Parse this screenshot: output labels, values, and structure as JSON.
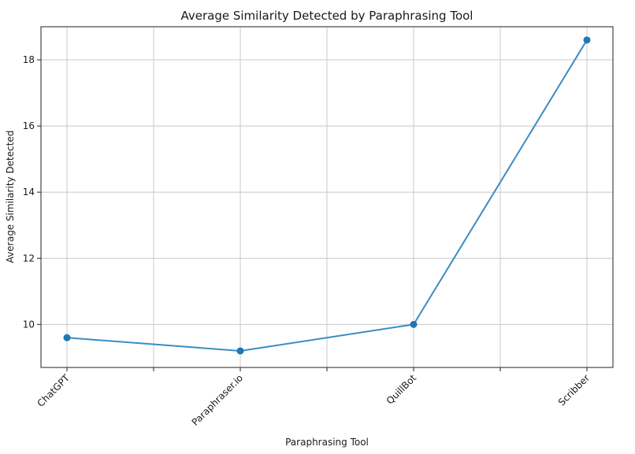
{
  "chart_data": {
    "type": "line",
    "title": "Average Similarity Detected by Paraphrasing Tool",
    "xlabel": "Paraphrasing Tool",
    "ylabel": "Average Similarity Detected",
    "categories": [
      "ChatGPT",
      "Paraphraser.io",
      "QuillBot",
      "Scribber"
    ],
    "series": [
      {
        "values": [
          9.6,
          9.2,
          10.0,
          18.6
        ]
      }
    ],
    "ylim": [
      8.7,
      19.0
    ],
    "yticks": [
      10,
      12,
      14,
      16,
      18
    ],
    "grid": true,
    "line_color": "#3b8bc4",
    "marker_color": "#1f77b4"
  }
}
